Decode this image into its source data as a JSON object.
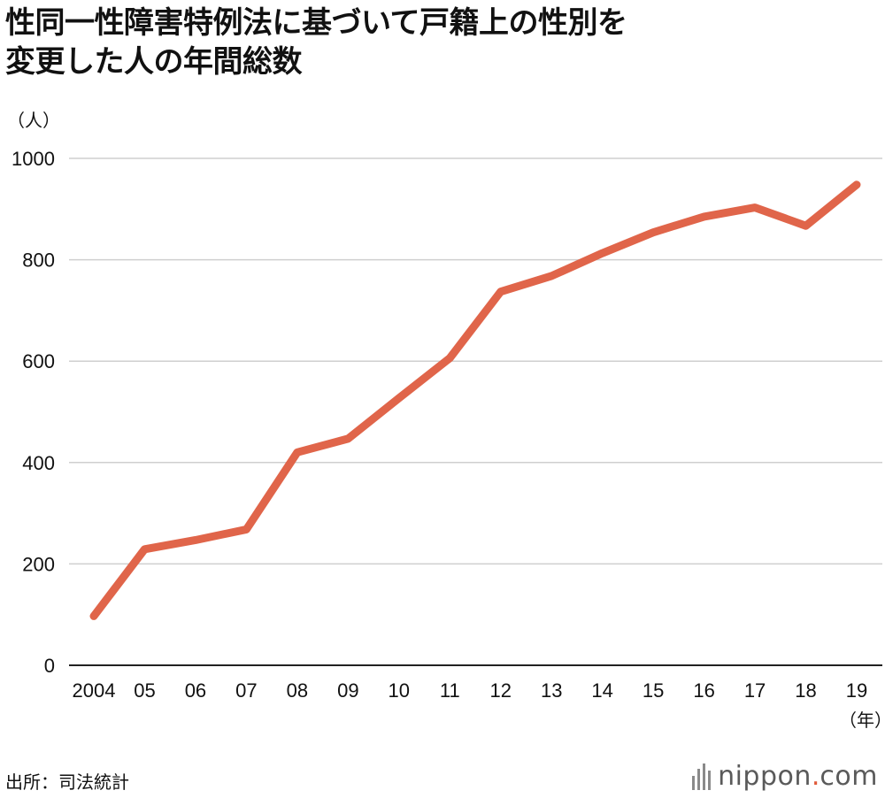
{
  "title_line1": "性同一性障害特例法に基づいて戸籍上の性別を",
  "title_line2": "変更した人の年間総数",
  "source": "出所：司法統計",
  "logo": {
    "word": "nippon",
    "dot": ".",
    "domain": "com"
  },
  "colors": {
    "line": "#e0654a",
    "grid": "#cfcfcf",
    "axis": "#222222"
  },
  "chart_data": {
    "type": "line",
    "title": "性同一性障害特例法に基づいて戸籍上の性別を変更した人の年間総数",
    "ylabel": "（人）",
    "xlabel": "（年）",
    "categories": [
      "2004",
      "05",
      "06",
      "07",
      "08",
      "09",
      "10",
      "11",
      "12",
      "13",
      "14",
      "15",
      "16",
      "17",
      "18",
      "19"
    ],
    "values": [
      97,
      229,
      247,
      268,
      420,
      447,
      527,
      606,
      737,
      768,
      813,
      854,
      885,
      903,
      867,
      948
    ],
    "ylim": [
      0,
      1000
    ],
    "yticks": [
      0,
      200,
      400,
      600,
      800,
      1000
    ],
    "grid": true,
    "legend": "none"
  }
}
